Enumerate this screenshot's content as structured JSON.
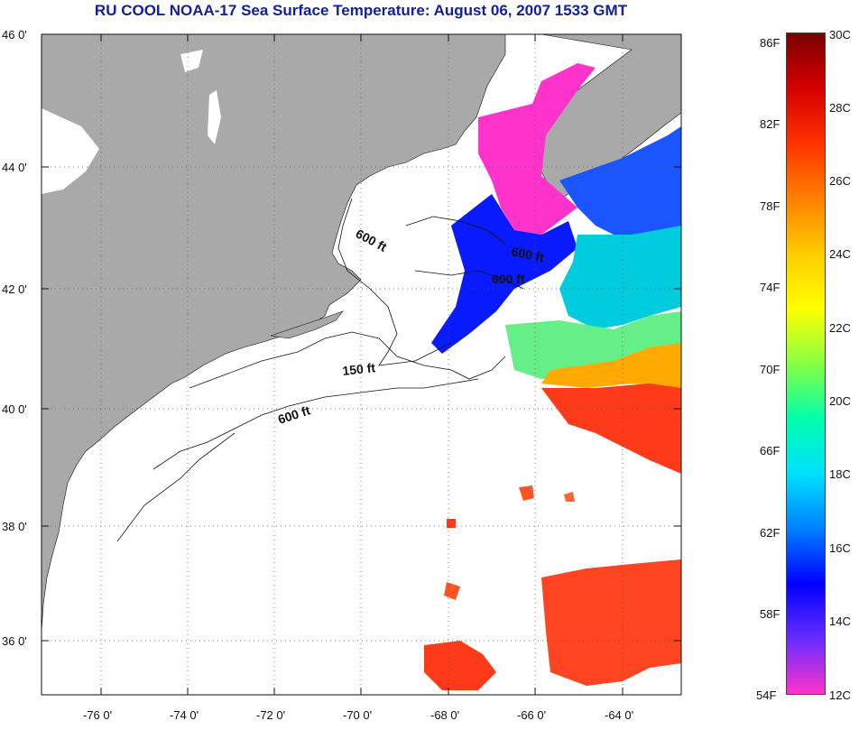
{
  "title": "RU COOL  NOAA-17  Sea Surface Temperature:  August 06, 2007 1533 GMT",
  "map": {
    "lat_labels": [
      "46 0'",
      "44 0'",
      "42 0'",
      "40 0'",
      "38 0'",
      "36 0'"
    ],
    "lon_labels": [
      "-76 0'",
      "-74 0'",
      "-72 0'",
      "-70 0'",
      "-68 0'",
      "-66 0'",
      "-64 0'"
    ],
    "contour_labels": [
      "600 ft",
      "600 ft",
      "600 ft",
      "150 ft",
      "600 ft"
    ],
    "lat_range": [
      35,
      46
    ],
    "lon_range": [
      -77,
      -63
    ],
    "colors": {
      "land": "#a9a9a9",
      "ocean_nodata": "#ffffff",
      "grid": "#555555"
    }
  },
  "colorbar": {
    "fahrenheit_labels": [
      "86F",
      "82F",
      "78F",
      "74F",
      "70F",
      "66F",
      "62F",
      "58F",
      "54F"
    ],
    "celsius_labels": [
      "30C",
      "28C",
      "26C",
      "24C",
      "22C",
      "20C",
      "18C",
      "16C",
      "14C",
      "12C"
    ],
    "range_c": [
      12,
      30
    ],
    "colors_top_to_bottom": [
      "#7a0000",
      "#d40000",
      "#ff3300",
      "#ff8000",
      "#ffcc00",
      "#ffff00",
      "#88ff44",
      "#00ffaa",
      "#00e0ff",
      "#0080ff",
      "#0000ff",
      "#6a2cff",
      "#ff33cc"
    ]
  }
}
